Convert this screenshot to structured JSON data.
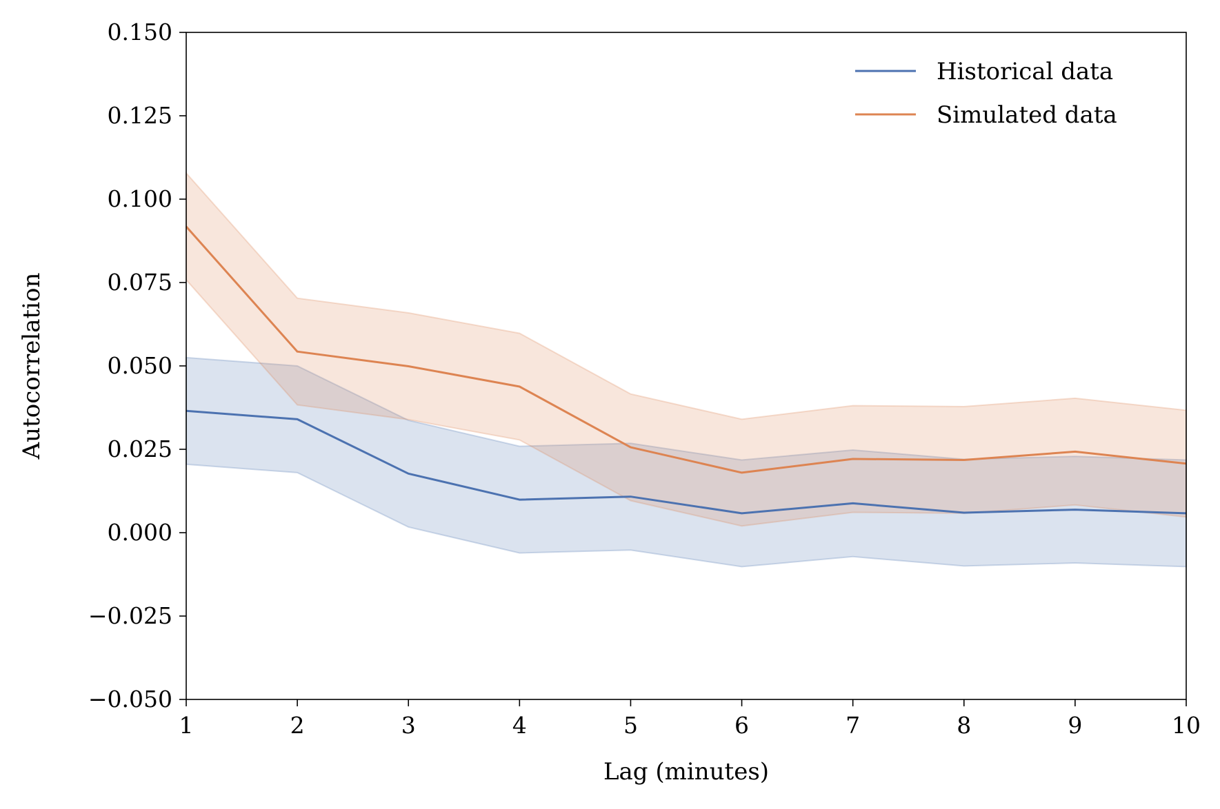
{
  "chart_data": {
    "type": "line",
    "title": "",
    "xlabel": "Lag (minutes)",
    "ylabel": "Autocorrelation",
    "xlim": [
      1,
      10
    ],
    "ylim": [
      -0.05,
      0.15
    ],
    "x_ticks": [
      1,
      2,
      3,
      4,
      5,
      6,
      7,
      8,
      9,
      10
    ],
    "x_tick_labels": [
      "1",
      "2",
      "3",
      "4",
      "5",
      "6",
      "7",
      "8",
      "9",
      "10"
    ],
    "y_ticks": [
      -0.05,
      -0.025,
      0.0,
      0.025,
      0.05,
      0.075,
      0.1,
      0.125,
      0.15
    ],
    "y_tick_labels": [
      "−0.050",
      "−0.025",
      "0.000",
      "0.025",
      "0.050",
      "0.075",
      "0.100",
      "0.125",
      "0.150"
    ],
    "grid": false,
    "legend_position": "top-right",
    "x": [
      1,
      2,
      3,
      4,
      5,
      6,
      7,
      8,
      9,
      10
    ],
    "series": [
      {
        "name": "Historical data",
        "color": "#4c72b0",
        "values": [
          0.0365,
          0.034,
          0.0177,
          0.0099,
          0.0108,
          0.0058,
          0.0088,
          0.006,
          0.0069,
          0.0058
        ],
        "upper": [
          0.0525,
          0.05,
          0.0337,
          0.0259,
          0.0268,
          0.0218,
          0.0248,
          0.022,
          0.0229,
          0.0218
        ],
        "lower": [
          0.0205,
          0.018,
          0.0017,
          -0.0061,
          -0.0052,
          -0.0102,
          -0.0072,
          -0.01,
          -0.0091,
          -0.0102
        ]
      },
      {
        "name": "Simulated data",
        "color": "#dd8452",
        "values": [
          0.0918,
          0.0543,
          0.0499,
          0.0438,
          0.0256,
          0.018,
          0.0221,
          0.0218,
          0.0243,
          0.0207
        ],
        "upper": [
          0.1078,
          0.0703,
          0.0659,
          0.0598,
          0.0416,
          0.034,
          0.0381,
          0.0378,
          0.0403,
          0.0367
        ],
        "lower": [
          0.0758,
          0.0383,
          0.0339,
          0.0278,
          0.0096,
          0.002,
          0.0061,
          0.0058,
          0.0083,
          0.0047
        ]
      }
    ]
  }
}
